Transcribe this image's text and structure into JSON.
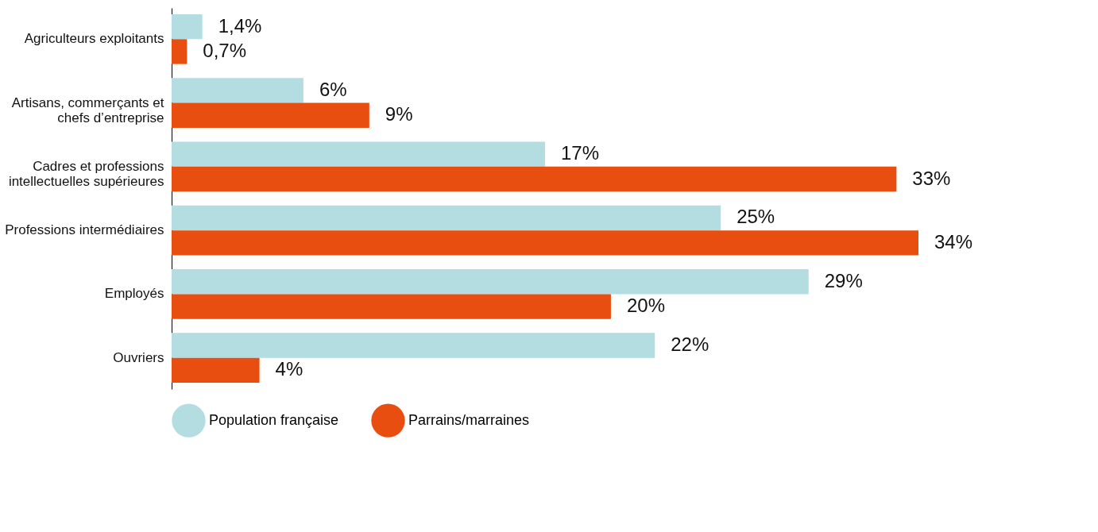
{
  "chart_data": {
    "type": "bar",
    "orientation": "horizontal",
    "categories": [
      "Agriculteurs exploitants",
      "Artisans, commerçants et chefs d’entreprise",
      "Cadres et professions intellectuelles supérieures",
      "Professions intermédiaires",
      "Employés",
      "Ouvriers"
    ],
    "series": [
      {
        "name": "Population française",
        "color": "#b4dde1",
        "values": [
          1.4,
          6,
          17,
          25,
          29,
          22
        ],
        "value_labels": [
          "1,4%",
          "6%",
          "17%",
          "25%",
          "29%",
          "22%"
        ]
      },
      {
        "name": "Parrains/marraines",
        "color": "#e84e0f",
        "values": [
          0.7,
          9,
          33,
          34,
          20,
          4
        ],
        "value_labels": [
          "0,7%",
          "9%",
          "33%",
          "34%",
          "20%",
          "4%"
        ]
      }
    ],
    "legend": "bottom",
    "grid": false
  }
}
